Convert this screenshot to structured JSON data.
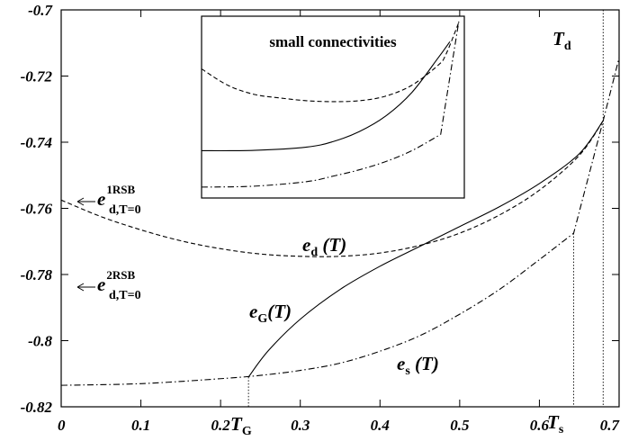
{
  "chart_data": {
    "type": "line",
    "xlim": [
      0,
      0.7
    ],
    "ylim": [
      -0.82,
      -0.7
    ],
    "x_ticks": [
      0,
      0.1,
      0.2,
      0.3,
      0.4,
      0.5,
      0.6,
      0.7
    ],
    "x_tick_labels": [
      "0",
      "0.1",
      "0.2",
      "0.3",
      "0.4",
      "0.5",
      "0.6",
      "0.7"
    ],
    "y_ticks": [
      -0.82,
      -0.8,
      -0.78,
      -0.76,
      -0.74,
      -0.72,
      -0.7
    ],
    "y_tick_labels": [
      "-0.82",
      "-0.8",
      "-0.78",
      "-0.76",
      "-0.74",
      "-0.72",
      "-0.7"
    ],
    "grid": false,
    "series": [
      {
        "name": "e_d(T)",
        "style": "dashed",
        "x": [
          0,
          0.05,
          0.1,
          0.15,
          0.2,
          0.25,
          0.3,
          0.35,
          0.4,
          0.45,
          0.5,
          0.55,
          0.6,
          0.65,
          0.68
        ],
        "y": [
          -0.7575,
          -0.7625,
          -0.7665,
          -0.7698,
          -0.7722,
          -0.7738,
          -0.7745,
          -0.7745,
          -0.7735,
          -0.7712,
          -0.7675,
          -0.762,
          -0.7545,
          -0.744,
          -0.7335
        ]
      },
      {
        "name": "e_G(T)",
        "style": "solid",
        "x": [
          0.235,
          0.26,
          0.3,
          0.35,
          0.4,
          0.45,
          0.5,
          0.55,
          0.6,
          0.65,
          0.68
        ],
        "y": [
          -0.811,
          -0.803,
          -0.7935,
          -0.7845,
          -0.7775,
          -0.7715,
          -0.7655,
          -0.7595,
          -0.7525,
          -0.7435,
          -0.7335
        ]
      },
      {
        "name": "e_s(T)",
        "style": "dashdot",
        "x": [
          0,
          0.1,
          0.2,
          0.25,
          0.3,
          0.35,
          0.4,
          0.45,
          0.5,
          0.55,
          0.6,
          0.643,
          0.68,
          0.7
        ],
        "y": [
          -0.8135,
          -0.813,
          -0.8115,
          -0.8105,
          -0.809,
          -0.8068,
          -0.8032,
          -0.7985,
          -0.792,
          -0.7845,
          -0.7755,
          -0.7675,
          -0.7335,
          -0.7145
        ]
      }
    ],
    "markers": [
      {
        "name": "T_G",
        "x": 0.235
      },
      {
        "name": "T_s",
        "x": 0.643
      },
      {
        "name": "T_d",
        "x": 0.68
      }
    ]
  },
  "labels": {
    "e_d": {
      "base": "e",
      "sub": "d",
      "arg": " (T)"
    },
    "e_G": {
      "base": "e",
      "sub": "G",
      "arg": "(T)"
    },
    "e_s": {
      "base": "e",
      "sub": "s",
      "arg": " (T)"
    },
    "T_G": {
      "base": "T",
      "sub": "G"
    },
    "T_s": {
      "base": "T",
      "sub": "s"
    },
    "T_d": {
      "base": "T",
      "sub": "d"
    },
    "e_1rsb": {
      "base": "e",
      "sup": "1RSB",
      "sub": "d,T=0"
    },
    "e_2rsb": {
      "base": "e",
      "sup": "2RSB",
      "sub": "d,T=0"
    }
  },
  "inset": {
    "title": "small connectivities",
    "series": [
      {
        "name": "dashed",
        "style": "dashed",
        "x": [
          0,
          0.1,
          0.2,
          0.3,
          0.4,
          0.5,
          0.6,
          0.7,
          0.8,
          0.9,
          0.93,
          0.98
        ],
        "y": [
          0.71,
          0.62,
          0.57,
          0.55,
          0.535,
          0.53,
          0.535,
          0.56,
          0.62,
          0.73,
          0.79,
          0.97
        ]
      },
      {
        "name": "solid",
        "style": "solid",
        "x": [
          0,
          0.2,
          0.4,
          0.5,
          0.6,
          0.7,
          0.8,
          0.9,
          0.945
        ],
        "y": [
          0.26,
          0.262,
          0.28,
          0.31,
          0.365,
          0.45,
          0.58,
          0.77,
          0.86
        ]
      },
      {
        "name": "dashdot",
        "style": "dashdot",
        "x": [
          0,
          0.2,
          0.4,
          0.5,
          0.6,
          0.7,
          0.8,
          0.91,
          0.98
        ],
        "y": [
          0.06,
          0.065,
          0.09,
          0.12,
          0.155,
          0.2,
          0.26,
          0.35,
          0.98
        ]
      }
    ]
  }
}
